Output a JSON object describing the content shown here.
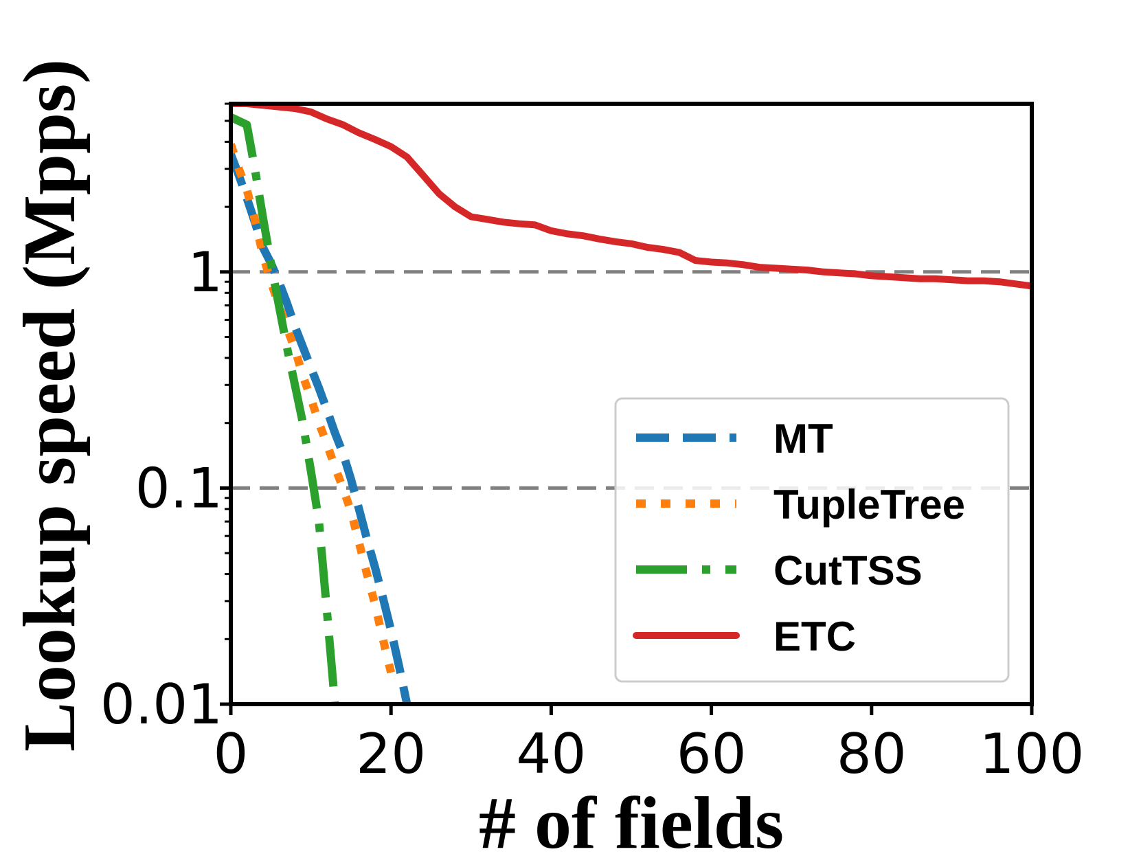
{
  "chart_data": {
    "type": "line",
    "title": "",
    "xlabel": "# of fields",
    "ylabel": "Lookup speed (Mpps)",
    "xlim": [
      0,
      100
    ],
    "ylim": [
      0.01,
      6
    ],
    "yscale": "log",
    "xticks": [
      0,
      20,
      40,
      60,
      80,
      100
    ],
    "xtick_labels": [
      "0",
      "20",
      "40",
      "60",
      "80",
      "100"
    ],
    "yticks": [
      1,
      0.1,
      0.01
    ],
    "ytick_labels": [
      "1",
      "0.1",
      "0.01"
    ],
    "reference_lines": [
      1,
      0.1
    ],
    "legend_position": "lower-right",
    "series": [
      {
        "name": "MT",
        "color": "#1f77b4",
        "style": "dashed",
        "x": [
          0,
          1,
          2,
          3,
          4,
          5,
          6,
          7,
          8,
          9,
          10,
          11,
          12,
          13,
          14,
          15,
          16,
          17,
          18,
          19,
          20,
          21,
          22
        ],
        "y": [
          3.5,
          2.8,
          2.2,
          1.7,
          1.3,
          1.1,
          0.9,
          0.72,
          0.56,
          0.45,
          0.36,
          0.29,
          0.23,
          0.18,
          0.145,
          0.11,
          0.08,
          0.058,
          0.043,
          0.031,
          0.022,
          0.015,
          0.01
        ]
      },
      {
        "name": "TupleTree",
        "color": "#ff7f0e",
        "style": "dotted",
        "x": [
          0,
          1,
          2,
          3,
          4,
          5,
          6,
          7,
          8,
          9,
          10,
          11,
          12,
          13,
          14,
          15,
          16,
          17,
          18,
          19,
          20
        ],
        "y": [
          3.9,
          3.0,
          2.4,
          1.75,
          1.2,
          0.9,
          0.7,
          0.55,
          0.44,
          0.33,
          0.26,
          0.2,
          0.16,
          0.125,
          0.1,
          0.078,
          0.056,
          0.04,
          0.029,
          0.02,
          0.014
        ]
      },
      {
        "name": "CutTSS",
        "color": "#2ca02c",
        "style": "dashdot",
        "x": [
          0,
          2,
          3,
          4,
          5,
          6,
          7,
          8,
          9,
          10,
          11,
          12,
          13
        ],
        "y": [
          5.2,
          4.8,
          3.0,
          1.8,
          1.1,
          0.7,
          0.45,
          0.3,
          0.2,
          0.12,
          0.07,
          0.027,
          0.01
        ]
      },
      {
        "name": "ETC",
        "color": "#d62728",
        "style": "solid",
        "x": [
          0,
          2,
          4,
          6,
          8,
          10,
          12,
          14,
          16,
          18,
          20,
          22,
          24,
          26,
          28,
          30,
          32,
          34,
          36,
          38,
          40,
          42,
          44,
          46,
          48,
          50,
          52,
          54,
          56,
          58,
          60,
          62,
          64,
          66,
          68,
          70,
          72,
          74,
          76,
          78,
          80,
          82,
          84,
          86,
          88,
          90,
          92,
          94,
          96,
          98,
          100
        ],
        "y": [
          6.0,
          6.0,
          5.9,
          5.8,
          5.7,
          5.5,
          5.1,
          4.8,
          4.4,
          4.1,
          3.8,
          3.4,
          2.8,
          2.3,
          2.0,
          1.8,
          1.75,
          1.7,
          1.67,
          1.65,
          1.55,
          1.5,
          1.47,
          1.42,
          1.38,
          1.35,
          1.3,
          1.27,
          1.23,
          1.13,
          1.11,
          1.1,
          1.08,
          1.05,
          1.04,
          1.03,
          1.02,
          1.0,
          0.99,
          0.98,
          0.96,
          0.95,
          0.94,
          0.93,
          0.93,
          0.92,
          0.91,
          0.91,
          0.9,
          0.88,
          0.86
        ]
      }
    ]
  }
}
